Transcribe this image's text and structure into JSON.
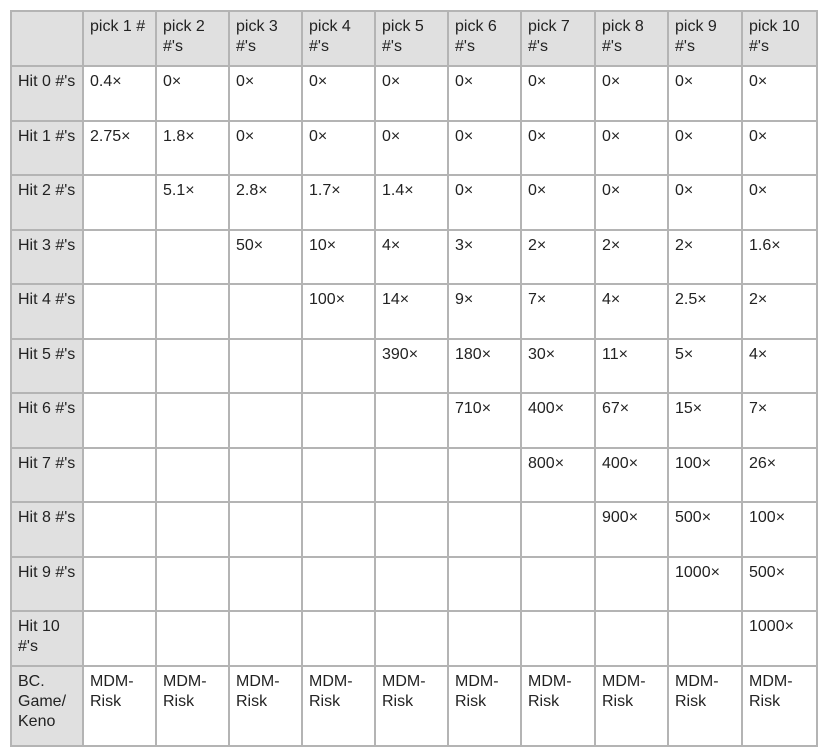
{
  "table": {
    "corner": "",
    "columns": [
      "pick 1 #",
      "pick 2 #'s",
      "pick 3 #'s",
      "pick 4 #'s",
      "pick 5 #'s",
      "pick 6 #'s",
      "pick 7 #'s",
      "pick 8 #'s",
      "pick 9 #'s",
      "pick 10 #'s"
    ],
    "rows": [
      {
        "label": "Hit 0 #'s",
        "cells": [
          "0.4×",
          "0×",
          "0×",
          "0×",
          "0×",
          "0×",
          "0×",
          "0×",
          "0×",
          "0×"
        ]
      },
      {
        "label": "Hit 1 #'s",
        "cells": [
          "2.75×",
          "1.8×",
          "0×",
          "0×",
          "0×",
          "0×",
          "0×",
          "0×",
          "0×",
          "0×"
        ]
      },
      {
        "label": "Hit 2 #'s",
        "cells": [
          "",
          "5.1×",
          "2.8×",
          "1.7×",
          "1.4×",
          "0×",
          "0×",
          "0×",
          "0×",
          "0×"
        ]
      },
      {
        "label": "Hit 3 #'s",
        "cells": [
          "",
          "",
          "50×",
          "10×",
          "4×",
          "3×",
          "2×",
          "2×",
          "2×",
          "1.6×"
        ]
      },
      {
        "label": "Hit 4 #'s",
        "cells": [
          "",
          "",
          "",
          "100×",
          "14×",
          "9×",
          "7×",
          "4×",
          "2.5×",
          "2×"
        ]
      },
      {
        "label": "Hit 5 #'s",
        "cells": [
          "",
          "",
          "",
          "",
          "390×",
          "180×",
          "30×",
          "11×",
          "5×",
          "4×"
        ]
      },
      {
        "label": "Hit 6 #'s",
        "cells": [
          "",
          "",
          "",
          "",
          "",
          "710×",
          "400×",
          "67×",
          "15×",
          "7×"
        ]
      },
      {
        "label": "Hit 7 #'s",
        "cells": [
          "",
          "",
          "",
          "",
          "",
          "",
          "800×",
          "400×",
          "100×",
          "26×"
        ]
      },
      {
        "label": "Hit 8 #'s",
        "cells": [
          "",
          "",
          "",
          "",
          "",
          "",
          "",
          "900×",
          "500×",
          "100×"
        ]
      },
      {
        "label": "Hit 9 #'s",
        "cells": [
          "",
          "",
          "",
          "",
          "",
          "",
          "",
          "",
          "1000×",
          "500×"
        ]
      },
      {
        "label": "Hit 10 #'s",
        "cells": [
          "",
          "",
          "",
          "",
          "",
          "",
          "",
          "",
          "",
          "1000×"
        ]
      },
      {
        "label": "BC. Game/ Keno",
        "cells": [
          "MDM-Risk",
          "MDM-Risk",
          "MDM-Risk",
          "MDM-Risk",
          "MDM-Risk",
          "MDM-Risk",
          "MDM-Risk",
          "MDM-Risk",
          "MDM-Risk",
          "MDM-Risk"
        ]
      }
    ]
  }
}
